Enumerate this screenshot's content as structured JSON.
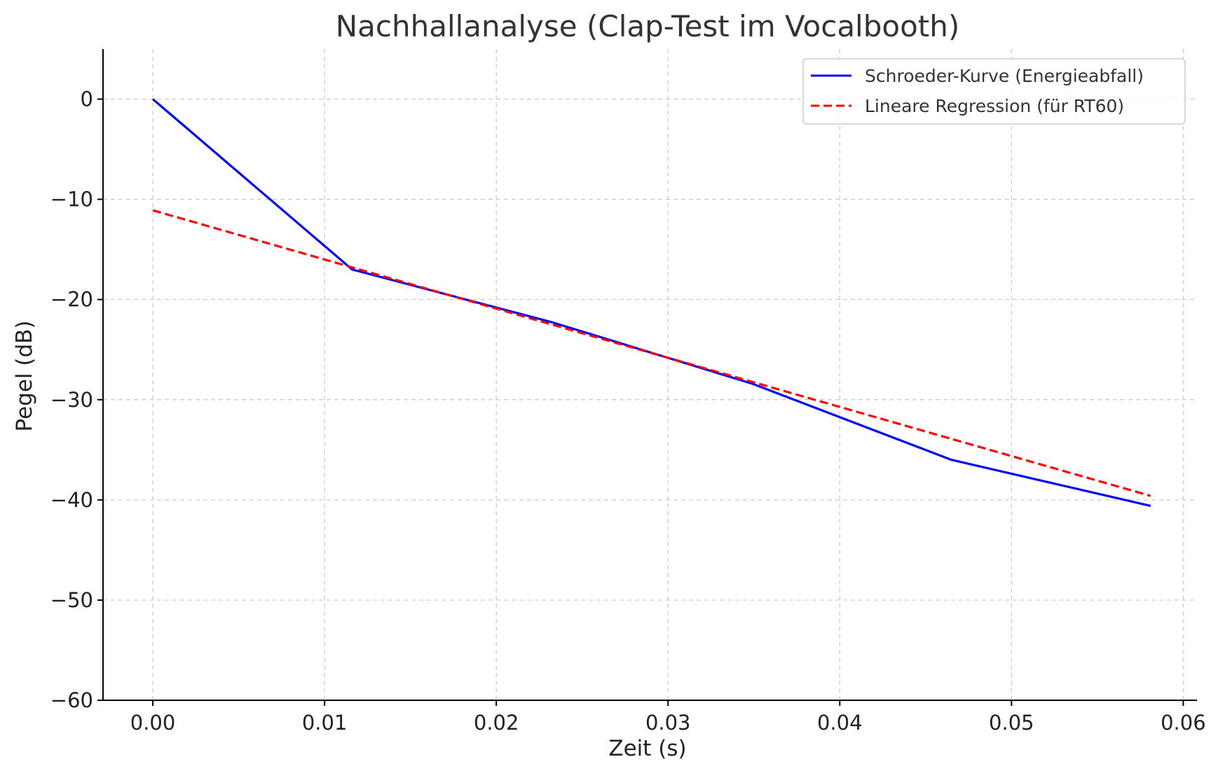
{
  "chart_data": {
    "type": "line",
    "title": "Nachhallanalyse (Clap-Test im Vocalbooth)",
    "xlabel": "Zeit (s)",
    "ylabel": "Pegel (dB)",
    "xlim": [
      -0.0029,
      0.0608
    ],
    "ylim": [
      -60,
      5
    ],
    "xticks": [
      0.0,
      0.01,
      0.02,
      0.03,
      0.04,
      0.05,
      0.06
    ],
    "xtick_labels": [
      "0.00",
      "0.01",
      "0.02",
      "0.03",
      "0.04",
      "0.05",
      "0.06"
    ],
    "yticks": [
      0,
      -10,
      -20,
      -30,
      -40,
      -50,
      -60
    ],
    "ytick_labels": [
      "0",
      "−10",
      "−20",
      "−30",
      "−40",
      "−50",
      "−60"
    ],
    "grid": true,
    "legend_position": "top-right",
    "series": [
      {
        "name": "Schroeder-Kurve (Energieabfall)",
        "color": "#0000ff",
        "style": "solid",
        "x": [
          0.0,
          0.0116,
          0.0233,
          0.0349,
          0.0465,
          0.0581
        ],
        "y": [
          0.0,
          -17.0,
          -22.3,
          -28.4,
          -36.0,
          -40.6
        ]
      },
      {
        "name": "Lineare Regression (für RT60)",
        "color": "#ff0000",
        "style": "dashed",
        "x": [
          0.0,
          0.0581
        ],
        "y": [
          -11.1,
          -39.6
        ]
      }
    ]
  }
}
